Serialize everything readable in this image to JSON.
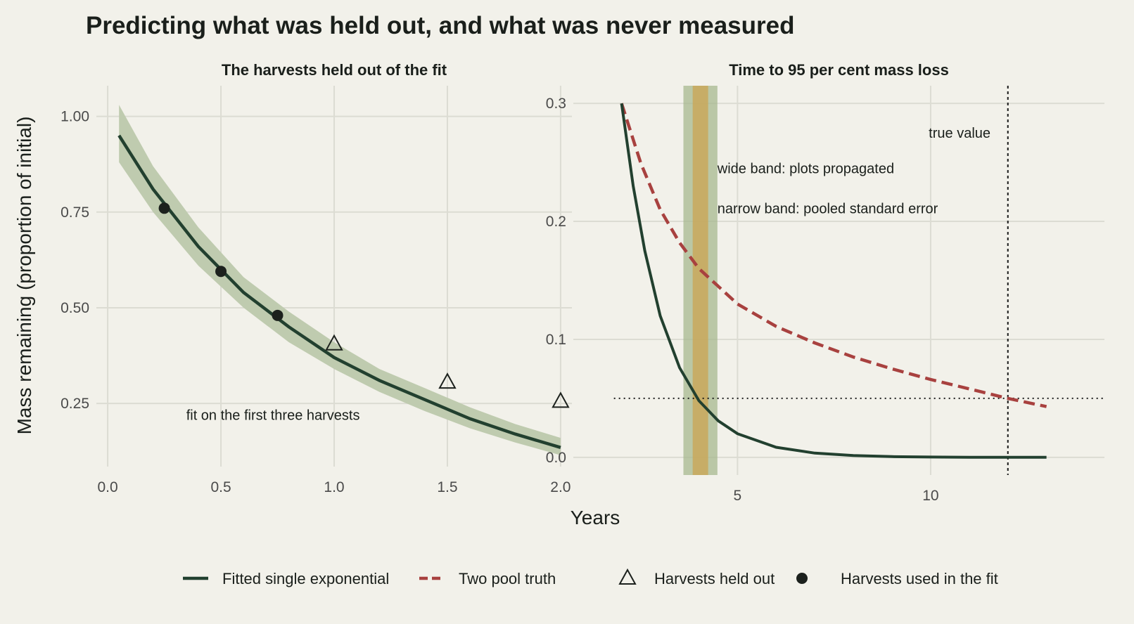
{
  "figure": {
    "title": "Predicting what was held out, and what was never measured",
    "shared_xlabel": "Years",
    "shared_ylabel": "Mass remaining (proportion of initial)"
  },
  "colors": {
    "background": "#f2f1ea",
    "grid": "#dcdcd3",
    "fit_line": "#22402f",
    "fit_band": "#bfcbaf",
    "truth_line": "#a8413f",
    "points": "#1c211d",
    "wide_band": "#a7b88f",
    "narrow_band": "#c9a85c",
    "reference": "#1a1a1a"
  },
  "chart_data": [
    {
      "type": "line",
      "title": "The harvests held out of the fit",
      "xlabel": "",
      "ylabel": "",
      "xlim": [
        -0.05,
        2.05
      ],
      "ylim": [
        0.085,
        1.08
      ],
      "x_ticks": [
        0,
        0.5,
        1,
        1.5,
        2
      ],
      "x_tick_labels": [
        "0.0",
        "0.5",
        "1.0",
        "1.5",
        "2.0"
      ],
      "y_ticks": [
        0.25,
        0.5,
        0.75,
        1
      ],
      "y_tick_labels": [
        "0.25",
        "0.50",
        "0.75",
        "1.00"
      ],
      "grid": true,
      "series": [
        {
          "name": "Fitted single exponential",
          "style": "line",
          "x": [
            0.05,
            0.2,
            0.4,
            0.6,
            0.8,
            1.0,
            1.2,
            1.4,
            1.6,
            1.8,
            2.0
          ],
          "y": [
            0.95,
            0.81,
            0.66,
            0.54,
            0.45,
            0.37,
            0.31,
            0.26,
            0.21,
            0.17,
            0.135
          ],
          "band_lower": [
            0.88,
            0.75,
            0.61,
            0.5,
            0.41,
            0.34,
            0.28,
            0.23,
            0.185,
            0.148,
            0.115
          ],
          "band_upper": [
            1.03,
            0.87,
            0.71,
            0.58,
            0.49,
            0.41,
            0.34,
            0.29,
            0.24,
            0.196,
            0.16
          ]
        },
        {
          "name": "Harvests used in the fit",
          "style": "points",
          "marker": "filled-circle",
          "x": [
            0.25,
            0.5,
            0.75
          ],
          "y": [
            0.76,
            0.595,
            0.48
          ]
        },
        {
          "name": "Harvests held out",
          "style": "points",
          "marker": "open-triangle",
          "x": [
            1.0,
            1.5,
            2.0
          ],
          "y": [
            0.405,
            0.305,
            0.255
          ]
        }
      ],
      "annotations": [
        {
          "text": "fit on the first three harvests",
          "x": 0.73,
          "y": 0.22
        }
      ]
    },
    {
      "type": "line",
      "title": "Time to 95 per cent mass loss",
      "xlabel": "",
      "ylabel": "",
      "xlim": [
        0.75,
        14.5
      ],
      "ylim": [
        -0.015,
        0.315
      ],
      "x_ticks": [
        5,
        10
      ],
      "x_tick_labels": [
        "5",
        "10"
      ],
      "y_ticks": [
        0,
        0.1,
        0.2,
        0.3
      ],
      "y_tick_labels": [
        "0.0",
        "0.1",
        "0.2",
        "0.3"
      ],
      "grid": true,
      "series": [
        {
          "name": "Fitted single exponential",
          "style": "line",
          "x": [
            2.0,
            2.3,
            2.6,
            3.0,
            3.5,
            4.0,
            4.5,
            5.0,
            6.0,
            7.0,
            8.0,
            9.0,
            10.0,
            11.0,
            12.0,
            13.0
          ],
          "y": [
            0.3,
            0.23,
            0.175,
            0.12,
            0.076,
            0.048,
            0.031,
            0.02,
            0.0085,
            0.0036,
            0.0015,
            0.0006,
            0.00025,
            0.0001,
            4e-05,
            2e-05
          ]
        },
        {
          "name": "Two pool truth",
          "style": "line",
          "x": [
            2.0,
            2.5,
            3.0,
            3.5,
            4.0,
            5.0,
            6.0,
            7.0,
            8.0,
            9.0,
            10.0,
            11.0,
            12.0,
            13.0
          ],
          "y": [
            0.3,
            0.249,
            0.21,
            0.182,
            0.16,
            0.13,
            0.111,
            0.097,
            0.085,
            0.075,
            0.066,
            0.058,
            0.05,
            0.043
          ]
        }
      ],
      "bands": [
        {
          "name": "wide band: plots propagated",
          "x_range": [
            3.6,
            4.48
          ]
        },
        {
          "name": "narrow band: pooled standard error",
          "x_range": [
            3.84,
            4.24
          ]
        }
      ],
      "reference_lines": [
        {
          "orientation": "horizontal",
          "value": 0.05,
          "style": "dotted"
        },
        {
          "orientation": "vertical",
          "value": 12.0,
          "style": "dotted",
          "label": "true value"
        }
      ],
      "annotations": [
        {
          "text": "true value",
          "x": 11.55,
          "y": 0.275
        },
        {
          "text": "wide band: plots propagated",
          "x": 4.48,
          "y": 0.245
        },
        {
          "text": "narrow band: pooled standard error",
          "x": 4.48,
          "y": 0.211
        }
      ]
    }
  ],
  "legend": {
    "position": "bottom",
    "items": [
      {
        "label": "Fitted single exponential",
        "symbol": "solid-line"
      },
      {
        "label": "Two pool truth",
        "symbol": "dashed-line"
      },
      {
        "label": "Harvests held out",
        "symbol": "open-triangle"
      },
      {
        "label": "Harvests used in the fit",
        "symbol": "filled-circle"
      }
    ]
  }
}
